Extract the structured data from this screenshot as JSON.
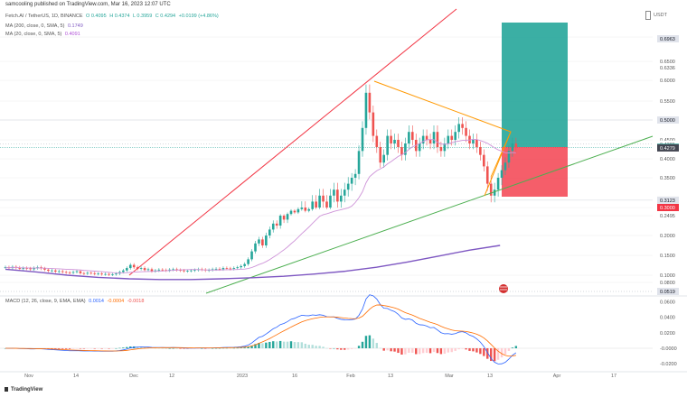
{
  "header": {
    "published": "samcooling published on TradingView.com, Mar 16, 2023 12:07 UTC",
    "symbol": "Fetch.AI / TetherUS, 1D, BINANCE",
    "ohlc": {
      "o": "O 0.4095",
      "h": "H 0.4374",
      "l": "L 0.3959",
      "c": "C 0.4294",
      "chg": "+0.0199 (+4.86%)"
    },
    "ma200": {
      "label": "MA (200, close, 0, SMA, 5)",
      "value": "0.1749"
    },
    "ma20": {
      "label": "MA (20, close, 0, SMA, 5)",
      "value": "0.4091"
    },
    "currency": "USDT"
  },
  "macd_header": {
    "label": "MACD (12, 26, close, 9, EMA, EMA)",
    "v1": "0.0014",
    "v2": "-0.0004",
    "v3": "-0.0018"
  },
  "brand": "TradingView",
  "colors": {
    "up": "#26a69a",
    "down": "#ef5350",
    "ma200": "#7e57c2",
    "ma20": "#ce93d8",
    "trend_red": "#f23645",
    "trend_green": "#4caf50",
    "triangle": "#ff9800",
    "tp_zone": "#26a69a",
    "sl_zone": "#f23645",
    "macd_line": "#2962ff",
    "signal_line": "#ff6d00"
  },
  "chart_data": {
    "type": "candlestick",
    "symbol": "FETUSDT",
    "timeframe": "1D",
    "x_tick_labels": [
      "Nov",
      "14",
      "Dec",
      "12",
      "2023",
      "16",
      "Feb",
      "13",
      "Mar",
      "13",
      "Apr",
      "17"
    ],
    "y_tick_labels": [
      "0.7000",
      "0.6500",
      "0.6000",
      "0.5500",
      "0.5000",
      "0.4500",
      "0.4000",
      "0.3500",
      "0.3000",
      "0.2500",
      "0.2000",
      "0.1500",
      "0.1000",
      "0.0800"
    ],
    "price_labels": [
      {
        "text": "0.6963",
        "value": 0.6963,
        "style": "grey"
      },
      {
        "text": "0.6336",
        "value": 0.6336,
        "style": "plain"
      },
      {
        "text": "0.5000",
        "value": 0.5,
        "style": "grey"
      },
      {
        "text": "0.4381",
        "value": 0.4381,
        "style": "plain"
      },
      {
        "text": "0.4294",
        "value": 0.4294,
        "style": "green"
      },
      {
        "text": "0.4279",
        "value": 0.4279,
        "style": "dark"
      },
      {
        "text": "0.3123",
        "value": 0.3123,
        "style": "grey"
      },
      {
        "text": "0.3000",
        "value": 0.3,
        "style": "red"
      },
      {
        "text": "0.2495",
        "value": 0.2495,
        "style": "plain"
      },
      {
        "text": "0.0519",
        "value": 0.0519,
        "style": "grey"
      }
    ],
    "macd_tick_labels": [
      "0.0600",
      "0.0400",
      "0.0200",
      "0.0000",
      "-0.0200"
    ],
    "macd_current_label": "-0.0000",
    "position": {
      "entry": 0.43,
      "take_profit": 0.7,
      "stop": 0.3
    },
    "ma200_trend": [
      0.115,
      0.108,
      0.1,
      0.094,
      0.09,
      0.088,
      0.088,
      0.09,
      0.093,
      0.097,
      0.103,
      0.11,
      0.12,
      0.133,
      0.148,
      0.163,
      0.175
    ],
    "macd_summary": {
      "macd_peak": 0.052,
      "signal_peak": 0.043,
      "hist_min": -0.03,
      "current": -0.0004
    }
  }
}
